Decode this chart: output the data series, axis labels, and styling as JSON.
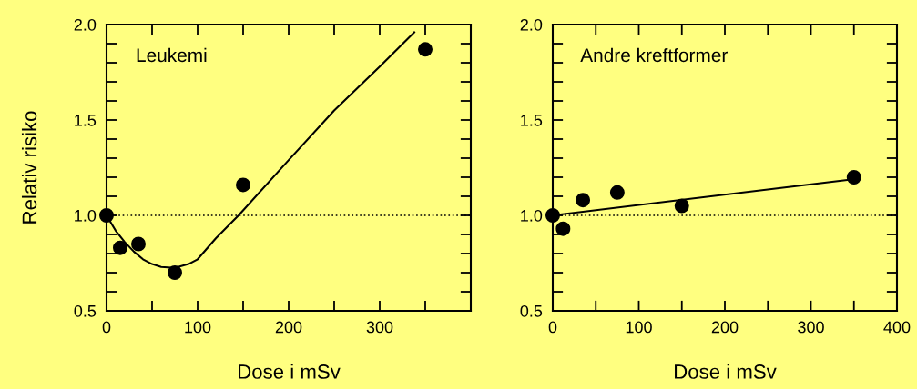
{
  "chart_data": [
    {
      "type": "scatter",
      "title": "Leukemi",
      "xlabel": "Dose i mSv",
      "ylabel": "Relativ risiko",
      "xlim": [
        0,
        400
      ],
      "xticks": [
        0,
        100,
        200,
        300,
        {
          "value": 50,
          "label": null
        },
        {
          "value": 150,
          "label": null
        },
        {
          "value": 250,
          "label": null
        },
        {
          "value": 350,
          "label": null
        },
        {
          "value": 400,
          "label": null
        }
      ],
      "ylim": [
        0.5,
        2.0
      ],
      "yticks": [
        {
          "value": 0.5,
          "label": "0.5"
        },
        {
          "value": 1.0,
          "label": "1.0"
        },
        {
          "value": 1.5,
          "label": "1.5"
        },
        {
          "value": 2.0,
          "label": "2.0"
        },
        {
          "value": 0.6,
          "label": null
        },
        {
          "value": 0.7,
          "label": null
        },
        {
          "value": 0.8,
          "label": null
        },
        {
          "value": 0.9,
          "label": null
        },
        {
          "value": 1.1,
          "label": null
        },
        {
          "value": 1.2,
          "label": null
        },
        {
          "value": 1.3,
          "label": null
        },
        {
          "value": 1.4,
          "label": null
        },
        {
          "value": 1.6,
          "label": null
        },
        {
          "value": 1.7,
          "label": null
        },
        {
          "value": 1.8,
          "label": null
        },
        {
          "value": 1.9,
          "label": null
        }
      ],
      "grid": false,
      "legend": false,
      "series": [
        {
          "marker": "circle",
          "color": "#000000",
          "x": [
            0,
            15,
            35,
            75,
            150,
            350
          ],
          "values": [
            1.0,
            0.83,
            0.85,
            0.7,
            1.16,
            1.87
          ]
        },
        {
          "type": "line",
          "color": "#000000",
          "x": [
            0,
            10,
            20,
            30,
            40,
            50,
            60,
            75,
            90,
            100,
            120,
            145,
            200,
            250,
            300,
            338
          ],
          "values": [
            1.0,
            0.92,
            0.86,
            0.81,
            0.77,
            0.745,
            0.73,
            0.725,
            0.745,
            0.77,
            0.88,
            1.0,
            1.29,
            1.55,
            1.78,
            1.96
          ]
        }
      ],
      "ref_lines": [
        {
          "axis": "y",
          "value": 1.0,
          "line_style": "dotted",
          "color": "#000000"
        }
      ]
    },
    {
      "type": "scatter",
      "title": "Andre kreftformer",
      "xlabel": "Dose i mSv",
      "xlim": [
        0,
        400
      ],
      "xticks": [
        0,
        100,
        200,
        300,
        400,
        {
          "value": 50,
          "label": null
        },
        {
          "value": 150,
          "label": null
        },
        {
          "value": 250,
          "label": null
        },
        {
          "value": 350,
          "label": null
        }
      ],
      "ylim": [
        0.5,
        2.0
      ],
      "yticks": [
        {
          "value": 0.5,
          "label": "0.5"
        },
        {
          "value": 1.0,
          "label": "1.0"
        },
        {
          "value": 1.5,
          "label": "1.5"
        },
        {
          "value": 2.0,
          "label": "2.0"
        },
        {
          "value": 0.6,
          "label": null
        },
        {
          "value": 0.7,
          "label": null
        },
        {
          "value": 0.8,
          "label": null
        },
        {
          "value": 0.9,
          "label": null
        },
        {
          "value": 1.1,
          "label": null
        },
        {
          "value": 1.2,
          "label": null
        },
        {
          "value": 1.3,
          "label": null
        },
        {
          "value": 1.4,
          "label": null
        },
        {
          "value": 1.6,
          "label": null
        },
        {
          "value": 1.7,
          "label": null
        },
        {
          "value": 1.8,
          "label": null
        },
        {
          "value": 1.9,
          "label": null
        }
      ],
      "grid": false,
      "legend": false,
      "series": [
        {
          "marker": "circle",
          "color": "#000000",
          "x": [
            0,
            12,
            35,
            75,
            150,
            350
          ],
          "values": [
            1.0,
            0.93,
            1.08,
            1.12,
            1.05,
            1.2
          ]
        },
        {
          "type": "line",
          "color": "#000000",
          "x": [
            0,
            350
          ],
          "values": [
            1.0,
            1.19
          ]
        }
      ],
      "ref_lines": [
        {
          "axis": "y",
          "value": 1.0,
          "line_style": "dotted",
          "color": "#000000"
        }
      ]
    }
  ]
}
